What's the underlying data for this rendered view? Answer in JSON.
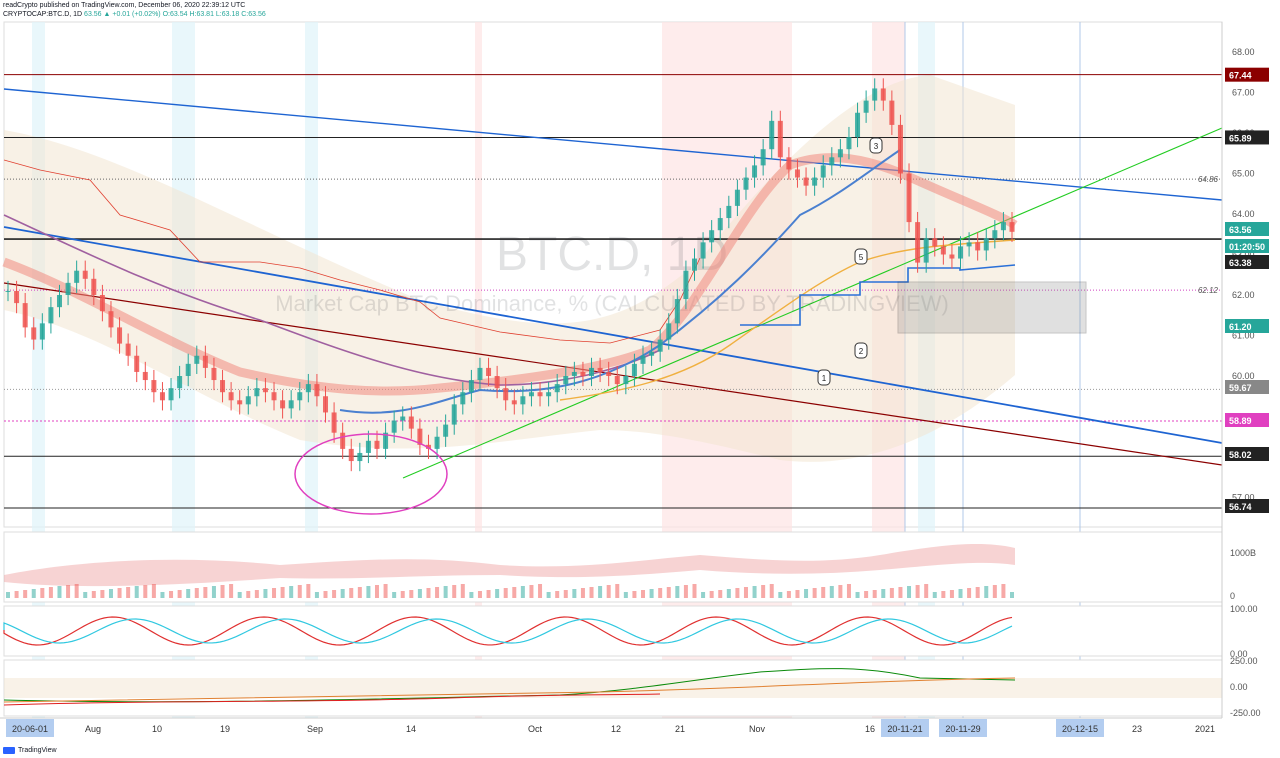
{
  "header": {
    "line1": "readCrypto published on TradingView.com, December 06, 2020 22:39:12 UTC",
    "symbol": "CRYPTOCAP:BTC.D, 1D",
    "change": "63.56 ▲ +0.01 (+0.02%)",
    "ohlc": "O:63.54 H:63.81 L:63.18 C:63.56"
  },
  "footer": {
    "brand": "TradingView"
  },
  "colors": {
    "up": "#26a69a",
    "down": "#ef5350",
    "trendline_blue": "#1e64d2",
    "trendline_red": "#8b0000",
    "trendline_green": "#22cc22",
    "ma_purple": "#a060a0",
    "ma_orange": "#f0b040",
    "circle": "#e040c0"
  },
  "chart_data": {
    "type": "candlestick",
    "watermark": {
      "symbol": "BTC.D, 1D",
      "name": "Market Cap BTC Dominance, % (CALCULATED BY TRADINGVIEW)"
    },
    "ylim": [
      56.5,
      68.5
    ],
    "yticks": [
      "68.00",
      "67.00",
      "66.00",
      "65.00",
      "64.00",
      "63.00",
      "62.00",
      "61.00",
      "60.00",
      "59.00",
      "58.00",
      "57.00"
    ],
    "xticks": [
      "20-06-01",
      "Aug",
      "10",
      "19",
      "Sep",
      "14",
      "Oct",
      "12",
      "21",
      "Nov",
      "16",
      "20-11-21",
      "20-11-29",
      "20-12-15",
      "23",
      "2021"
    ],
    "price_labels": [
      {
        "value": "67.44",
        "color": "#8b0000"
      },
      {
        "value": "65.89",
        "color": "#222"
      },
      {
        "value": "63.56",
        "color": "#26a69a"
      },
      {
        "value": "01:20:50",
        "color": "#26a69a"
      },
      {
        "value": "63.38",
        "color": "#222"
      },
      {
        "value": "61.20",
        "color": "#26a69a"
      },
      {
        "value": "59.67",
        "color": "#888"
      },
      {
        "value": "58.89",
        "color": "#e040c0"
      },
      {
        "value": "58.02",
        "color": "#222"
      },
      {
        "value": "56.74",
        "color": "#222"
      }
    ],
    "horizontal_levels": [
      67.44,
      65.89,
      63.38,
      58.02,
      56.74
    ],
    "dotted_levels": [
      {
        "value": 64.86,
        "label": "64.86"
      },
      {
        "value": 62.12,
        "label": "62.12"
      }
    ],
    "wave_labels": [
      "1",
      "2",
      "3",
      "5"
    ],
    "indicators": {
      "volume": {
        "yticks": [
          "1000B",
          "0"
        ]
      },
      "oscillator": {
        "yticks": [
          "100.00",
          "0.00"
        ]
      },
      "cci": {
        "yticks": [
          "250.00",
          "0.00",
          "-250.00"
        ]
      }
    },
    "closes": [
      62.1,
      61.8,
      61.2,
      60.9,
      61.3,
      61.7,
      62.0,
      62.3,
      62.6,
      62.4,
      62.0,
      61.6,
      61.2,
      60.8,
      60.5,
      60.1,
      59.9,
      59.6,
      59.4,
      59.7,
      60.0,
      60.3,
      60.5,
      60.2,
      59.9,
      59.6,
      59.4,
      59.3,
      59.5,
      59.7,
      59.6,
      59.4,
      59.2,
      59.4,
      59.6,
      59.8,
      59.5,
      59.1,
      58.6,
      58.2,
      57.9,
      58.1,
      58.4,
      58.2,
      58.6,
      58.9,
      59.0,
      58.7,
      58.3,
      58.2,
      58.5,
      58.8,
      59.3,
      59.6,
      59.9,
      60.2,
      60.0,
      59.7,
      59.4,
      59.3,
      59.5,
      59.6,
      59.5,
      59.6,
      59.8,
      60.0,
      60.1,
      60.0,
      60.2,
      60.1,
      60.0,
      59.8,
      60.0,
      60.3,
      60.5,
      60.6,
      60.9,
      61.3,
      61.9,
      62.6,
      62.9,
      63.3,
      63.6,
      63.9,
      64.2,
      64.6,
      64.9,
      65.2,
      65.6,
      66.3,
      65.4,
      65.1,
      64.9,
      64.7,
      64.9,
      65.2,
      65.4,
      65.6,
      65.9,
      66.5,
      66.8,
      67.1,
      66.8,
      66.2,
      65.0,
      63.8,
      62.8,
      63.4,
      63.2,
      63.0,
      62.9,
      63.2,
      63.3,
      63.1,
      63.4,
      63.6,
      63.8,
      63.56
    ]
  }
}
